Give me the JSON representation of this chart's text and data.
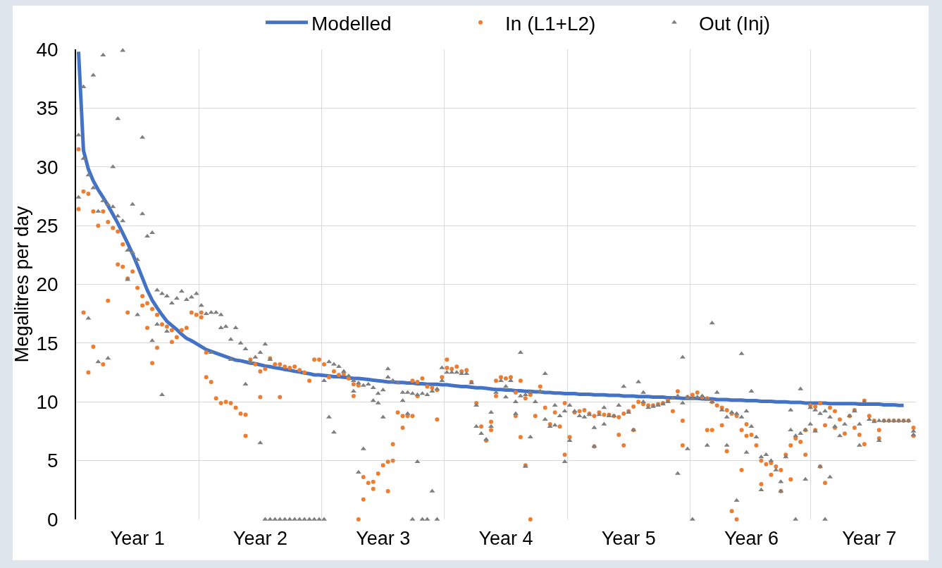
{
  "chart_data": {
    "type": "scatter",
    "ylabel": "Megalitres per day",
    "ylim": [
      0,
      40
    ],
    "yticks": [
      0,
      5,
      10,
      15,
      20,
      25,
      30,
      35,
      40
    ],
    "grid": true,
    "legend": "top",
    "categories": [
      null,
      null,
      null,
      null,
      null,
      null,
      null,
      null,
      null,
      null,
      null,
      null,
      "Year 1",
      null,
      null,
      null,
      null,
      null,
      null,
      null,
      null,
      null,
      null,
      null,
      null,
      null,
      null,
      null,
      null,
      null,
      null,
      null,
      null,
      null,
      null,
      null,
      null,
      "Year 2",
      null,
      null,
      null,
      null,
      null,
      null,
      null,
      null,
      null,
      null,
      null,
      null,
      null,
      null,
      null,
      null,
      null,
      null,
      null,
      null,
      null,
      null,
      null,
      null,
      "Year 3",
      null,
      null,
      null,
      null,
      null,
      null,
      null,
      null,
      null,
      null,
      null,
      null,
      null,
      null,
      null,
      null,
      null,
      null,
      null,
      null,
      null,
      null,
      null,
      null,
      "Year 4",
      null,
      null,
      null,
      null,
      null,
      null,
      null,
      null,
      null,
      null,
      null,
      null,
      null,
      null,
      null,
      null,
      null,
      null,
      null,
      null,
      null,
      null,
      null,
      null,
      "Year 5",
      null,
      null,
      null,
      null,
      null,
      null,
      null,
      null,
      null,
      null,
      null,
      null,
      null,
      null,
      null,
      null,
      null,
      null,
      null,
      null,
      null,
      null,
      null,
      null,
      "Year 6",
      null,
      null,
      null,
      null,
      null,
      null,
      null,
      null,
      null,
      null,
      null,
      null,
      null,
      null,
      null,
      null,
      null,
      null,
      null,
      null,
      null,
      null,
      null,
      "Year 7",
      null,
      null,
      null,
      null,
      null,
      null,
      null,
      null,
      null
    ],
    "series": [
      {
        "name": "Modelled",
        "type": "line",
        "color": "#4472c4",
        "marker": "none",
        "line_style": "solid",
        "values": [
          39.8,
          31.4,
          29.8,
          28.8,
          28.05,
          27.4,
          26.7,
          25.95,
          25.2,
          24.35,
          23.5,
          22.6,
          21.6,
          20.55,
          19.5,
          18.65,
          18.0,
          17.4,
          16.85,
          16.5,
          16.15,
          15.75,
          15.4,
          15.2,
          14.95,
          14.7,
          14.45,
          14.3,
          14.15,
          14.0,
          13.85,
          13.7,
          13.55,
          13.5,
          13.4,
          13.3,
          13.25,
          13.15,
          13.05,
          13.0,
          12.9,
          12.85,
          12.75,
          12.7,
          12.6,
          12.55,
          12.45,
          12.4,
          12.3,
          12.3,
          12.25,
          12.2,
          12.15,
          12.15,
          12.1,
          12.05,
          12.0,
          12.0,
          11.95,
          11.9,
          11.85,
          11.8,
          11.75,
          11.7,
          11.7,
          11.65,
          11.65,
          11.6,
          11.6,
          11.55,
          11.55,
          11.5,
          11.5,
          11.5,
          11.45,
          11.45,
          11.4,
          11.35,
          11.3,
          11.3,
          11.25,
          11.2,
          11.2,
          11.15,
          11.1,
          11.05,
          11.05,
          11.0,
          11.0,
          10.95,
          10.95,
          10.9,
          10.9,
          10.85,
          10.85,
          10.8,
          10.8,
          10.75,
          10.75,
          10.7,
          10.7,
          10.7,
          10.65,
          10.65,
          10.65,
          10.6,
          10.6,
          10.6,
          10.55,
          10.55,
          10.55,
          10.5,
          10.5,
          10.5,
          10.45,
          10.45,
          10.45,
          10.4,
          10.4,
          10.4,
          10.35,
          10.35,
          10.35,
          10.3,
          10.3,
          10.3,
          10.3,
          10.25,
          10.25,
          10.25,
          10.2,
          10.2,
          10.2,
          10.15,
          10.15,
          10.15,
          10.1,
          10.1,
          10.1,
          10.05,
          10.05,
          10.05,
          10.0,
          10.0,
          10.0,
          9.95,
          9.95,
          9.95,
          9.9,
          9.9,
          9.9,
          9.9,
          9.9,
          9.85,
          9.85,
          9.85,
          9.85,
          9.85,
          9.85,
          9.8,
          9.8,
          9.8,
          9.8,
          9.8,
          9.75,
          9.75,
          9.75,
          9.7,
          9.7,
          null,
          null
        ]
      },
      {
        "name": "In (L1+L2)",
        "color": "#ed7d31",
        "marker": "circle",
        "values": [
          31.5,
          27.9,
          27.7,
          26.2,
          25.0,
          26.2,
          25.3,
          24.8,
          24.5,
          23.4,
          20.5,
          21.1,
          19.7,
          19.0,
          18.4,
          17.9,
          17.4,
          16.6,
          16.4,
          16.1,
          15.5,
          16.1,
          16.3,
          17.6,
          17.4,
          17.6,
          12.1,
          11.7,
          10.3,
          9.9,
          10.0,
          9.9,
          9.5,
          9.0,
          8.9,
          13.6,
          13.2,
          12.6,
          12.8,
          13.7,
          13.2,
          13.2,
          13.0,
          12.9,
          13.0,
          12.7,
          12.5,
          11.8,
          13.6,
          13.6,
          13.2,
          12.1,
          12.6,
          12.3,
          12.4,
          12.0,
          11.5,
          11.4,
          3.6,
          3.1,
          2.6,
          3.9,
          4.6,
          4.9,
          5.0,
          9.1,
          8.8,
          8.8,
          8.8,
          11.7,
          12.0,
          11.3,
          11.2,
          11.0,
          12.1,
          13.6,
          12.8,
          13.0,
          12.6,
          12.7,
          11.7,
          9.9,
          7.9,
          6.7,
          7.6,
          11.8,
          12.1,
          12.0,
          12.1,
          10.8,
          11.8,
          10.3,
          10.6,
          8.8,
          11.3,
          9.5,
          8.1,
          9.1,
          7.9,
          9.9,
          7.0,
          9.1,
          9.2,
          9.3,
          9.0,
          8.8,
          9.1,
          8.9,
          8.9,
          8.8,
          8.7,
          9.0,
          9.2,
          9.6,
          10.0,
          9.8,
          9.7,
          9.7,
          9.8,
          9.9,
          10.1,
          9.2,
          10.9,
          8.4,
          10.4,
          10.6,
          10.8,
          10.4,
          10.3,
          10.0,
          9.7,
          9.5,
          9.3,
          9.0,
          8.8,
          7.6,
          8.1,
          7.2,
          6.3,
          5.0,
          4.7,
          4.8,
          4.5,
          4.2,
          5.5,
          6.3,
          6.9,
          6.6,
          7.6,
          9.7,
          9.6,
          9.9,
          8.0,
          9.5,
          9.2,
          8.5,
          7.3,
          8.8,
          9.3,
          7.2,
          10.1,
          8.8,
          8.4,
          7.6,
          8.4,
          8.4,
          8.4,
          8.4,
          8.4,
          8.4,
          7.8
        ]
      },
      {
        "color": "#ed7d31",
        "marker": "circle",
        "values": [
          26.4,
          17.6,
          12.5,
          14.7,
          null,
          13.2,
          18.6,
          null,
          21.7,
          21.5,
          17.6,
          null,
          null,
          18.2,
          16.3,
          13.3,
          14.6,
          null,
          null,
          15.1,
          null,
          null,
          null,
          null,
          null,
          17.2,
          14.2,
          null,
          null,
          null,
          null,
          null,
          null,
          null,
          7.1,
          null,
          null,
          10.4,
          null,
          null,
          null,
          10.4,
          null,
          null,
          null,
          null,
          null,
          null,
          null,
          null,
          null,
          null,
          null,
          null,
          null,
          null,
          10.5,
          0,
          1.7,
          null,
          3.2,
          null,
          null,
          2.4,
          6.4,
          null,
          7.8,
          null,
          11.8,
          10.5,
          null,
          null,
          null,
          8.5,
          null,
          12.9,
          null,
          null,
          null,
          null,
          null,
          null,
          null,
          null,
          8.3,
          10.5,
          null,
          null,
          null,
          8.8,
          7.0,
          4.6,
          0,
          null,
          null,
          null,
          null,
          null,
          null,
          5.5,
          null,
          null,
          null,
          null,
          null,
          6.2,
          null,
          null,
          null,
          null,
          7.2,
          6.3,
          null,
          7.6,
          null,
          null,
          null,
          null,
          null,
          null,
          null,
          null,
          null,
          6.3,
          null,
          null,
          null,
          null,
          7.6,
          7.6,
          null,
          8.0,
          5.8,
          0.7,
          0,
          4.2,
          7.1,
          null,
          null,
          3.0,
          null,
          3.8,
          null,
          2.4,
          null,
          3.4,
          null,
          null,
          5.5,
          null,
          7.6,
          4.5,
          3.1,
          null,
          7.8,
          null,
          null,
          null,
          7.8,
          null,
          6.4,
          null,
          null,
          6.9,
          null,
          null,
          null,
          null,
          null,
          null,
          7.1
        ]
      },
      {
        "name": "Out (Inj)",
        "color": "#7f7f7f",
        "marker": "triangle",
        "values": [
          32.7,
          30.7,
          29.3,
          28.2,
          26.2,
          27.1,
          26.8,
          26.6,
          25.8,
          25.4,
          22.9,
          22.7,
          22.1,
          26.0,
          24.1,
          24.4,
          19.5,
          19.2,
          19.0,
          18.4,
          18.8,
          19.4,
          18.7,
          18.9,
          19.2,
          18.2,
          17.5,
          17.6,
          17.6,
          17.4,
          16.4,
          15.3,
          16.3,
          15.0,
          14.5,
          13.4,
          13.8,
          14.2,
          14.9,
          13.6,
          null,
          null,
          null,
          null,
          null,
          null,
          null,
          null,
          null,
          null,
          11.8,
          13.4,
          13.2,
          13.0,
          12.6,
          12.2,
          11.8,
          11.6,
          11.4,
          11.5,
          11.2,
          10.7,
          11.0,
          12.1,
          11.8,
          11.6,
          10.8,
          10.8,
          10.7,
          10.6,
          10.7,
          10.6,
          10.9,
          11.1,
          11.8,
          12.5,
          12.5,
          12.5,
          12.4,
          12.4,
          11.6,
          9.7,
          7.3,
          6.8,
          7.9,
          10.8,
          11.8,
          11.3,
          11.8,
          10.0,
          10.5,
          10.6,
          10.8,
          10.0,
          10.9,
          12.4,
          7.9,
          9.7,
          8.8,
          9.2,
          9.7,
          9.2,
          8.8,
          8.7,
          8.9,
          7.8,
          8.9,
          9.5,
          8.8,
          8.8,
          9.7,
          11.3,
          9.1,
          7.6,
          11.7,
          10.0,
          9.5,
          9.6,
          9.7,
          9.8,
          10.0,
          10.3,
          10.5,
          9.9,
          10.4,
          10.3,
          10.4,
          10.5,
          10.2,
          10.0,
          10.8,
          9.3,
          8.7,
          9.1,
          9.0,
          8.7,
          9.2,
          7.9,
          7.0,
          5.3,
          5.5,
          5.0,
          4.2,
          3.2,
          5.3,
          7.6,
          7.1,
          7.3,
          7.6,
          9.5,
          9.3,
          9.0,
          9.2,
          8.7,
          7.9,
          7.1,
          8.1,
          8.8,
          9.2,
          8.1,
          10.0,
          8.5,
          8.3,
          8.4,
          8.4,
          8.4,
          8.4,
          8.4,
          8.4,
          8.4,
          7.5
        ]
      },
      {
        "color": "#7f7f7f",
        "marker": "triangle",
        "values": [
          27.4,
          36.8,
          17.1,
          37.8,
          13.4,
          39.5,
          13.7,
          30.0,
          34.1,
          39.9,
          20.4,
          26.8,
          17.4,
          32.5,
          null,
          15.2,
          16.6,
          10.6,
          16.0,
          null,
          null,
          null,
          null,
          null,
          null,
          null,
          null,
          14.2,
          null,
          16.3,
          null,
          13.6,
          null,
          null,
          11.5,
          null,
          null,
          6.5,
          0,
          0,
          0,
          0,
          0,
          0,
          0,
          0,
          0,
          0,
          0,
          0,
          0,
          8.7,
          7.4,
          null,
          null,
          null,
          10.9,
          4.0,
          6.0,
          null,
          10.1,
          9.9,
          8.7,
          12.8,
          null,
          null,
          10.1,
          9.0,
          0,
          4.9,
          0,
          0,
          2.4,
          0,
          12.9,
          null,
          null,
          null,
          null,
          null,
          null,
          7.9,
          null,
          null,
          9.1,
          null,
          null,
          10.4,
          null,
          9.0,
          14.2,
          4.5,
          7.0,
          null,
          null,
          8.5,
          null,
          8.0,
          null,
          4.9,
          6.7,
          null,
          null,
          null,
          null,
          6.2,
          null,
          8.1,
          null,
          null,
          null,
          null,
          null,
          null,
          null,
          10.8,
          null,
          null,
          null,
          null,
          null,
          null,
          3.9,
          13.8,
          6.0,
          0,
          null,
          null,
          6.3,
          16.7,
          null,
          null,
          6.3,
          null,
          1.6,
          14.1,
          5.7,
          10.9,
          null,
          2.5,
          null,
          null,
          null,
          2.4,
          null,
          9.3,
          0,
          11.1,
          3.4,
          8.1,
          7.5,
          4.5,
          0,
          3.6,
          null,
          null,
          null,
          null,
          null,
          6.3,
          null,
          null,
          null,
          6.7,
          null,
          null,
          null,
          null,
          null,
          null,
          7.2
        ]
      }
    ]
  }
}
